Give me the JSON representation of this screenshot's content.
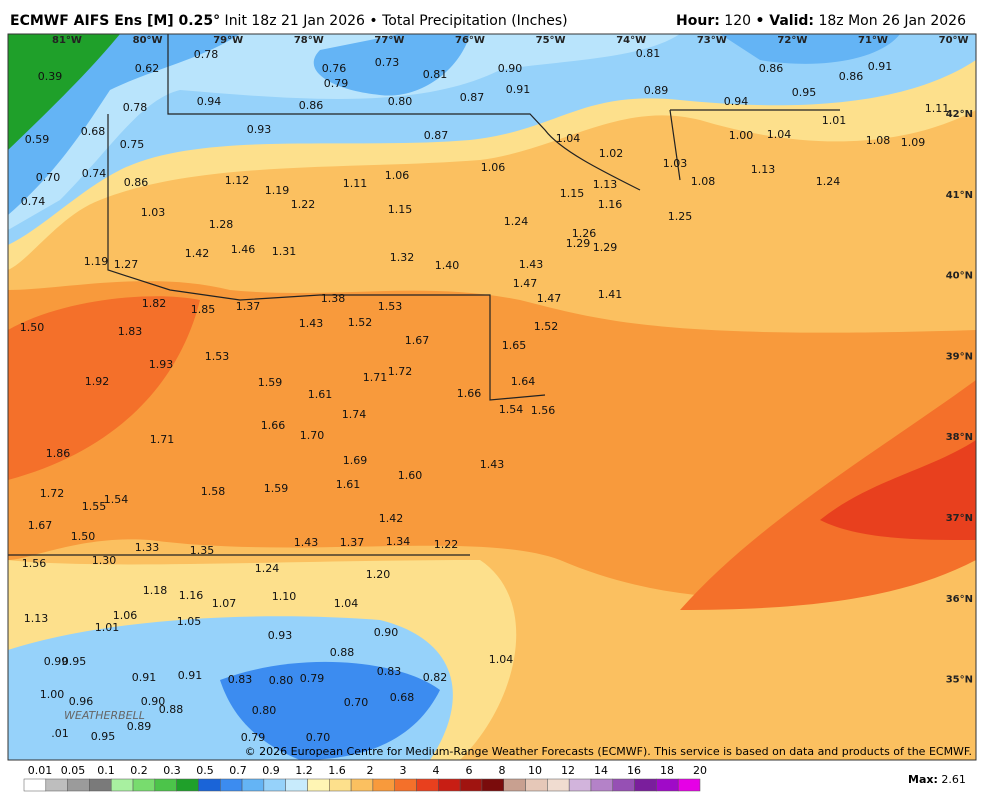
{
  "header": {
    "model": "ECMWF AIFS Ens [M] 0.25°",
    "info": " Init 18z 21 Jan 2026 • Total Precipitation (Inches)",
    "hour_label": "Hour:",
    "hour": " 120 ",
    "valid_label": "• Valid:",
    "valid": " 18z Mon 26 Jan 2026"
  },
  "longitudes": [
    "81°W",
    "80°W",
    "79°W",
    "78°W",
    "77°W",
    "76°W",
    "75°W",
    "74°W",
    "73°W",
    "72°W",
    "71°W",
    "70°W"
  ],
  "latitudes": [
    "42°N",
    "41°N",
    "40°N",
    "39°N",
    "38°N",
    "37°N",
    "36°N",
    "35°N"
  ],
  "map_labels": [
    "0.39",
    "0.62",
    "0.78",
    "0.76",
    "0.73",
    "0.79",
    "0.81",
    "0.90",
    "0.81",
    "0.86",
    "0.91",
    "0.86",
    "0.91",
    "0.89",
    "0.95",
    "0.94",
    "0.86",
    "0.80",
    "0.87",
    "0.94",
    "0.78",
    "0.59",
    "0.68",
    "0.75",
    "0.93",
    "0.87",
    "1.04",
    "1.00",
    "1.04",
    "1.01",
    "1.11",
    "1.02",
    "1.03",
    "0.70",
    "0.74",
    "0.86",
    "1.12",
    "1.19",
    "1.11",
    "1.06",
    "1.06",
    "1.08",
    "1.13",
    "1.24",
    "1.08",
    "1.09",
    "0.74",
    "1.03",
    "1.22",
    "1.15",
    "1.15",
    "1.13",
    "1.16",
    "1.25",
    "1.28",
    "1.24",
    "1.26",
    "1.29",
    "1.29",
    "1.42",
    "1.46",
    "1.31",
    "1.32",
    "1.40",
    "1.19",
    "1.27",
    "1.43",
    "1.47",
    "1.47",
    "1.41",
    "1.38",
    "1.53",
    "1.82",
    "1.85",
    "1.37",
    "1.50",
    "1.83",
    "1.43",
    "1.52",
    "1.52",
    "1.67",
    "1.65",
    "1.53",
    "1.93",
    "1.72",
    "1.71",
    "1.64",
    "1.92",
    "1.59",
    "1.61",
    "1.66",
    "1.74",
    "1.54",
    "1.56",
    "1.66",
    "1.70",
    "1.71",
    "1.86",
    "1.69",
    "1.43",
    "1.60",
    "1.61",
    "1.58",
    "1.59",
    "1.72",
    "1.54",
    "1.55",
    "1.42",
    "1.67",
    "1.50",
    "1.43",
    "1.37",
    "1.34",
    "1.22",
    "1.33",
    "1.35",
    "1.30",
    "1.56",
    "1.24",
    "1.20",
    "1.18",
    "1.16",
    "1.10",
    "1.07",
    "1.04",
    "1.13",
    "1.06",
    "1.05",
    "1.01",
    "0.93",
    "0.90",
    "0.88",
    "0.99",
    "0.95",
    "0.91",
    "0.91",
    "0.83",
    "0.80",
    "0.79",
    "0.83",
    "0.82",
    "1.04",
    "1.00",
    "0.96",
    "0.90",
    "0.88",
    "0.80",
    "0.70",
    "0.68",
    "0.89",
    "0.79",
    "0.70",
    "0.95",
    ".01"
  ],
  "colorbar": {
    "labels": [
      "0.01",
      "0.05",
      "0.1",
      "0.2",
      "0.3",
      "0.5",
      "0.7",
      "0.9",
      "1.2",
      "1.6",
      "2",
      "3",
      "4",
      "6",
      "8",
      "10",
      "12",
      "14",
      "16",
      "18",
      "20"
    ],
    "colors": [
      "#ffffff",
      "#bebebe",
      "#9b9b9b",
      "#7a7a7a",
      "#a8f0a0",
      "#78dc6e",
      "#4cc44a",
      "#1fa02a",
      "#1a64d8",
      "#3c8cf0",
      "#64b4f5",
      "#96d2fa",
      "#c8ebfc",
      "#fff5b4",
      "#fde08c",
      "#fbc060",
      "#f89a3c",
      "#f4702a",
      "#e8401e",
      "#c81e14",
      "#a01410",
      "#7a0c0c",
      "#c8a090",
      "#e6c8b8",
      "#f0dcd0",
      "#d2b4dc",
      "#b482c8",
      "#9650b4",
      "#7a1e9c",
      "#a00ac8",
      "#e600e6"
    ]
  },
  "credit": "© 2026 European Centre for Medium-Range Weather Forecasts (ECMWF). This service is based on data and products of the ECMWF.",
  "logo": "WEATHERBELL",
  "max_label": "Max:",
  "max_value": " 2.61"
}
